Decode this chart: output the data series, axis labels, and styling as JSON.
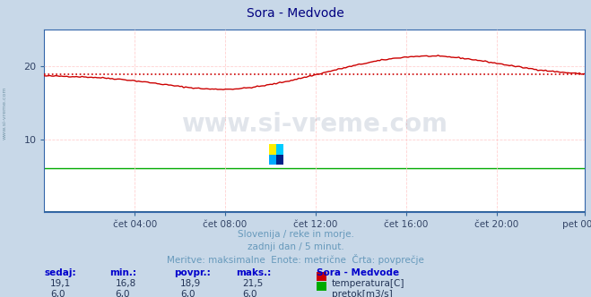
{
  "title": "Sora - Medvode",
  "title_color": "#000080",
  "bg_color": "#c8d8e8",
  "plot_bg_color": "#ffffff",
  "grid_color_h": "#ffcccc",
  "grid_color_v": "#ffcccc",
  "xlabel_ticks": [
    "čet 04:00",
    "čet 08:00",
    "čet 12:00",
    "čet 16:00",
    "čet 20:00",
    "pet 00:00"
  ],
  "ylabel_ticks": [
    10,
    20
  ],
  "ylim": [
    0,
    25
  ],
  "xlim": [
    0,
    287
  ],
  "avg_temp": 18.9,
  "temp_color": "#cc0000",
  "flow_color": "#00aa00",
  "avg_line_color": "#cc0000",
  "subtitle1": "Slovenija / reke in morje.",
  "subtitle2": "zadnji dan / 5 minut.",
  "subtitle3": "Meritve: maksimalne  Enote: metrične  Črta: povprečje",
  "subtitle_color": "#6699bb",
  "table_headers": [
    "sedaj:",
    "min.:",
    "povpr.:",
    "maks.:"
  ],
  "table_row1_vals": [
    "19,1",
    "16,8",
    "18,9",
    "21,5"
  ],
  "table_row2_vals": [
    "6,0",
    "6,0",
    "6,0",
    "6,0"
  ],
  "station_label": "Sora - Medvode",
  "legend_temp": "temperatura[C]",
  "legend_flow": "pretok[m3/s]",
  "watermark": "www.si-vreme.com",
  "watermark_color": "#1a3a6a",
  "watermark_alpha": 0.13,
  "side_label": "www.si-vreme.com",
  "side_label_color": "#7799aa",
  "header_color": "#0000cc",
  "val_color": "#223355",
  "axis_color": "#336699",
  "tick_color": "#334466"
}
